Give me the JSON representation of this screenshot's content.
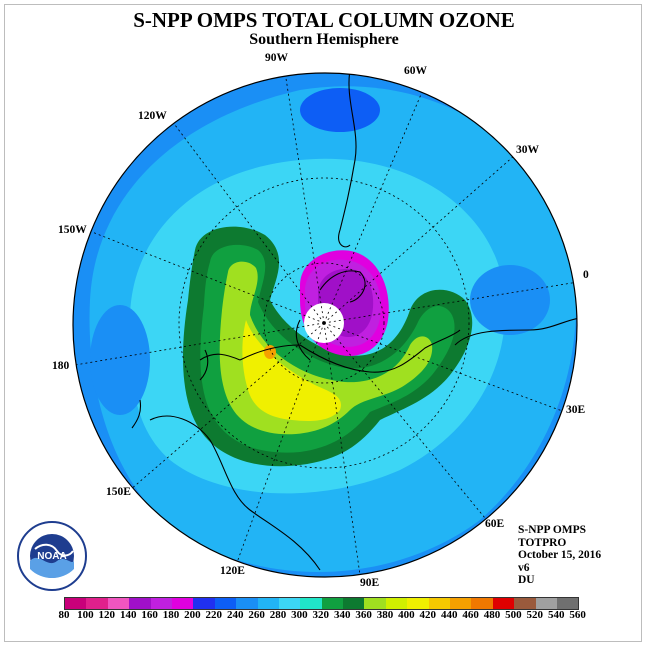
{
  "title": "S-NPP OMPS TOTAL COLUMN OZONE",
  "subtitle": "Southern Hemisphere",
  "longitude_labels": {
    "w90": "90W",
    "w60": "60W",
    "w120": "120W",
    "w30": "30W",
    "w150": "150W",
    "zero": "0",
    "lon180": "180",
    "e30": "30E",
    "e150": "150E",
    "e60": "60E",
    "e120": "120E",
    "e90": "90E"
  },
  "info": {
    "instrument": "S-NPP OMPS",
    "product": "TOTPRO",
    "date": "October 15, 2016",
    "version": "v6",
    "units": "DU"
  },
  "logo": {
    "text": "NOAA"
  },
  "colorbar": {
    "colors": [
      "#c8007a",
      "#e0208c",
      "#f055c0",
      "#a010c8",
      "#c020e0",
      "#e000e0",
      "#2030f0",
      "#0d5ef5",
      "#1a8ff5",
      "#22b4f5",
      "#3cd6f5",
      "#20e6c8",
      "#10a040",
      "#0d7a30",
      "#a0e020",
      "#d0f000",
      "#f0f000",
      "#f5c800",
      "#f5a000",
      "#f07800",
      "#e00000",
      "#9a5a3c",
      "#a0a0a0",
      "#707070"
    ],
    "labels": [
      "80",
      "100",
      "120",
      "140",
      "160",
      "180",
      "200",
      "220",
      "240",
      "260",
      "280",
      "300",
      "320",
      "340",
      "360",
      "380",
      "400",
      "420",
      "440",
      "460",
      "480",
      "500",
      "520",
      "540",
      "560"
    ]
  }
}
